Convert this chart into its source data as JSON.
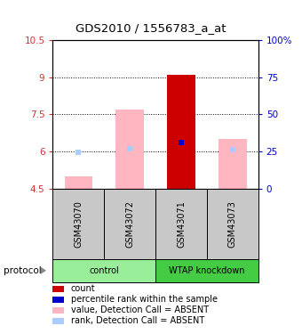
{
  "title": "GDS2010 / 1556783_a_at",
  "samples": [
    "GSM43070",
    "GSM43072",
    "GSM43071",
    "GSM43073"
  ],
  "ylim": [
    4.5,
    10.5
  ],
  "yticks": [
    4.5,
    6.0,
    7.5,
    9.0,
    10.5
  ],
  "ytick_labels": [
    "4.5",
    "6",
    "7.5",
    "9",
    "10.5"
  ],
  "y2_ticks": [
    0,
    25,
    50,
    75,
    100
  ],
  "y2_tick_labels": [
    "0",
    "25",
    "50",
    "75",
    "100%"
  ],
  "bar_values": [
    5.0,
    7.7,
    9.1,
    6.5
  ],
  "bar_colors": [
    "#FFB6C1",
    "#FFB6C1",
    "#CC0000",
    "#FFB6C1"
  ],
  "rank_dots": [
    5.97,
    6.1,
    6.35,
    6.07
  ],
  "rank_dot_colors": [
    "#AACCFF",
    "#AACCFF",
    "#0000CC",
    "#AACCFF"
  ],
  "bar_bottom": 4.5,
  "bar_width": 0.55,
  "grid_yticks": [
    6.0,
    7.5,
    9.0
  ],
  "legend_items": [
    {
      "color": "#CC0000",
      "label": "count"
    },
    {
      "color": "#0000CC",
      "label": "percentile rank within the sample"
    },
    {
      "color": "#FFB6C1",
      "label": "value, Detection Call = ABSENT"
    },
    {
      "color": "#AACCFF",
      "label": "rank, Detection Call = ABSENT"
    }
  ],
  "protocol_label": "protocol",
  "left_axis_color": "#CC3333",
  "right_axis_color": "#0000CC",
  "bg_color": "#FFFFFF",
  "plot_bg_color": "#FFFFFF",
  "sample_bg_color": "#C8C8C8",
  "control_color": "#99EE99",
  "knockdown_color": "#44CC44",
  "group_spans": [
    [
      0,
      2,
      "control"
    ],
    [
      2,
      4,
      "WTAP knockdown"
    ]
  ]
}
